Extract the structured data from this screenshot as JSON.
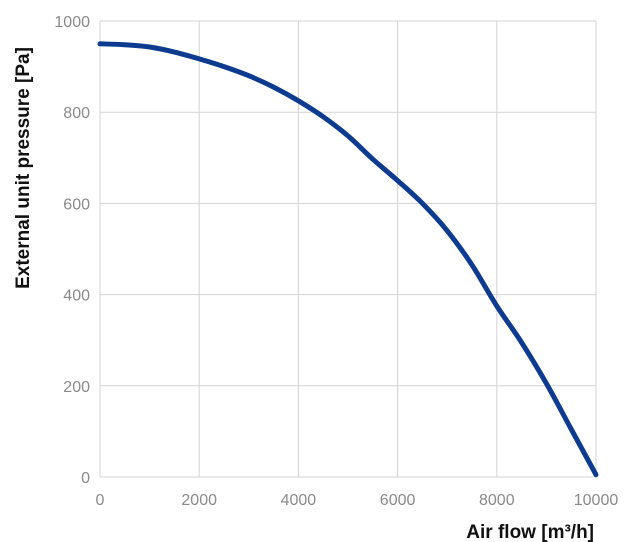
{
  "chart_data": {
    "type": "line",
    "title": "",
    "xlabel": "Air flow [m³/h]",
    "ylabel": "External unit pressure [Pa]",
    "xlim": [
      0,
      10000
    ],
    "ylim": [
      0,
      1000
    ],
    "xticks": [
      0,
      2000,
      4000,
      6000,
      8000,
      10000
    ],
    "yticks": [
      0,
      200,
      400,
      600,
      800,
      1000
    ],
    "grid": true,
    "legend": "none",
    "colors": {
      "series": "#0d3b8f",
      "grid": "#d3d3d3",
      "tick_text": "#8a8a8a",
      "axis_title": "#111111"
    },
    "series": [
      {
        "x": [
          0,
          500,
          1000,
          1500,
          2000,
          2500,
          3000,
          3500,
          4000,
          4500,
          5000,
          5500,
          6000,
          6500,
          7000,
          7500,
          8000,
          8500,
          9000,
          9500,
          10000
        ],
        "values": [
          950,
          948,
          943,
          932,
          917,
          900,
          880,
          855,
          825,
          790,
          748,
          697,
          650,
          600,
          540,
          465,
          375,
          295,
          205,
          105,
          5
        ]
      }
    ]
  }
}
